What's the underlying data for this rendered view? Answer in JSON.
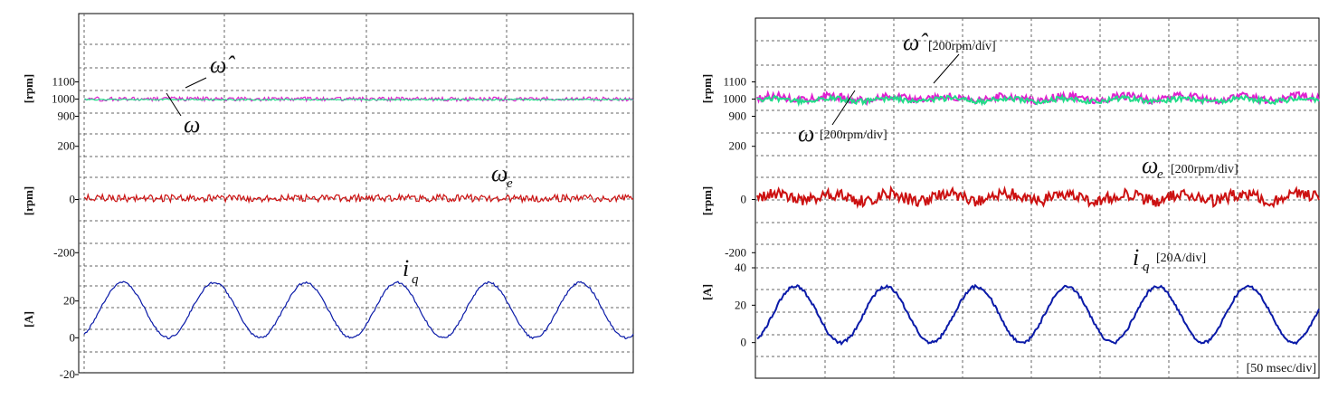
{
  "chart_data": [
    {
      "type": "line",
      "panels": [
        {
          "unit_label": "[rpm]",
          "ylim": [
            850,
            1250
          ],
          "ticks": [
            900,
            1000,
            1100
          ],
          "tick_labels": [
            "900",
            "1000",
            "1100"
          ],
          "series": [
            {
              "name": "ω̂",
              "color": "#e020d0",
              "mean": 1000,
              "noise": 12
            },
            {
              "name": "ω",
              "color": "#22dd88",
              "mean": 997,
              "noise": 4
            }
          ]
        },
        {
          "unit_label": "[rpm]",
          "ylim": [
            -250,
            250
          ],
          "ticks": [
            -200,
            0,
            200
          ],
          "tick_labels": [
            "-200",
            "0",
            "200"
          ],
          "series": [
            {
              "name": "ω_e",
              "color": "#cc1111",
              "mean": 5,
              "noise": 14
            }
          ]
        },
        {
          "unit_label": "[A]",
          "ylim": [
            -20,
            40
          ],
          "ticks": [
            -20,
            0,
            20
          ],
          "tick_labels": [
            "-20",
            "0",
            "20"
          ],
          "series": [
            {
              "name": "i_q",
              "color": "#0a1aa8",
              "offset": 15,
              "amplitude": 15,
              "cycles": 6,
              "noise": 0.6
            }
          ]
        }
      ],
      "labels": {
        "omega_hat": "ω̂",
        "omega": "ω",
        "omega_e": "ω",
        "omega_e_sub": "e",
        "iq": "i",
        "iq_sub": "q"
      }
    },
    {
      "type": "line",
      "panels": [
        {
          "unit_label": "[rpm]",
          "ylim": [
            850,
            1250
          ],
          "ticks": [
            900,
            1000,
            1100
          ],
          "tick_labels": [
            "900",
            "1000",
            "1100"
          ],
          "series": [
            {
              "name": "ω̂",
              "color": "#e020d0",
              "mean": 1005,
              "noise": 22
            },
            {
              "name": "ω",
              "color": "#22dd88",
              "mean": 995,
              "noise": 15
            }
          ]
        },
        {
          "unit_label": "[rpm]",
          "ylim": [
            -250,
            250
          ],
          "ticks": [
            -200,
            0,
            200
          ],
          "tick_labels": [
            "-200",
            "0",
            "200"
          ],
          "series": [
            {
              "name": "ω_e",
              "color": "#cc1111",
              "mean": 8,
              "noise": 22
            }
          ]
        },
        {
          "unit_label": "[A]",
          "ylim": [
            -20,
            40
          ],
          "ticks": [
            0,
            20,
            40
          ],
          "tick_labels": [
            "0",
            "20",
            "40"
          ],
          "series": [
            {
              "name": "i_q",
              "color": "#0a1aa8",
              "offset": 15,
              "amplitude": 15,
              "cycles": 6.2,
              "noise": 0.8
            }
          ]
        }
      ],
      "labels": {
        "omega_hat": "ω̂",
        "omega_hat_scale": "[200rpm/div]",
        "omega": "ω",
        "omega_scale": "[200rpm/div]",
        "omega_e": "ω",
        "omega_e_sub": "e",
        "omega_e_scale": "[200rpm/div]",
        "iq": "i",
        "iq_sub": "q",
        "iq_scale": "[20A/div]",
        "time_scale": "[50 msec/div]"
      }
    }
  ]
}
